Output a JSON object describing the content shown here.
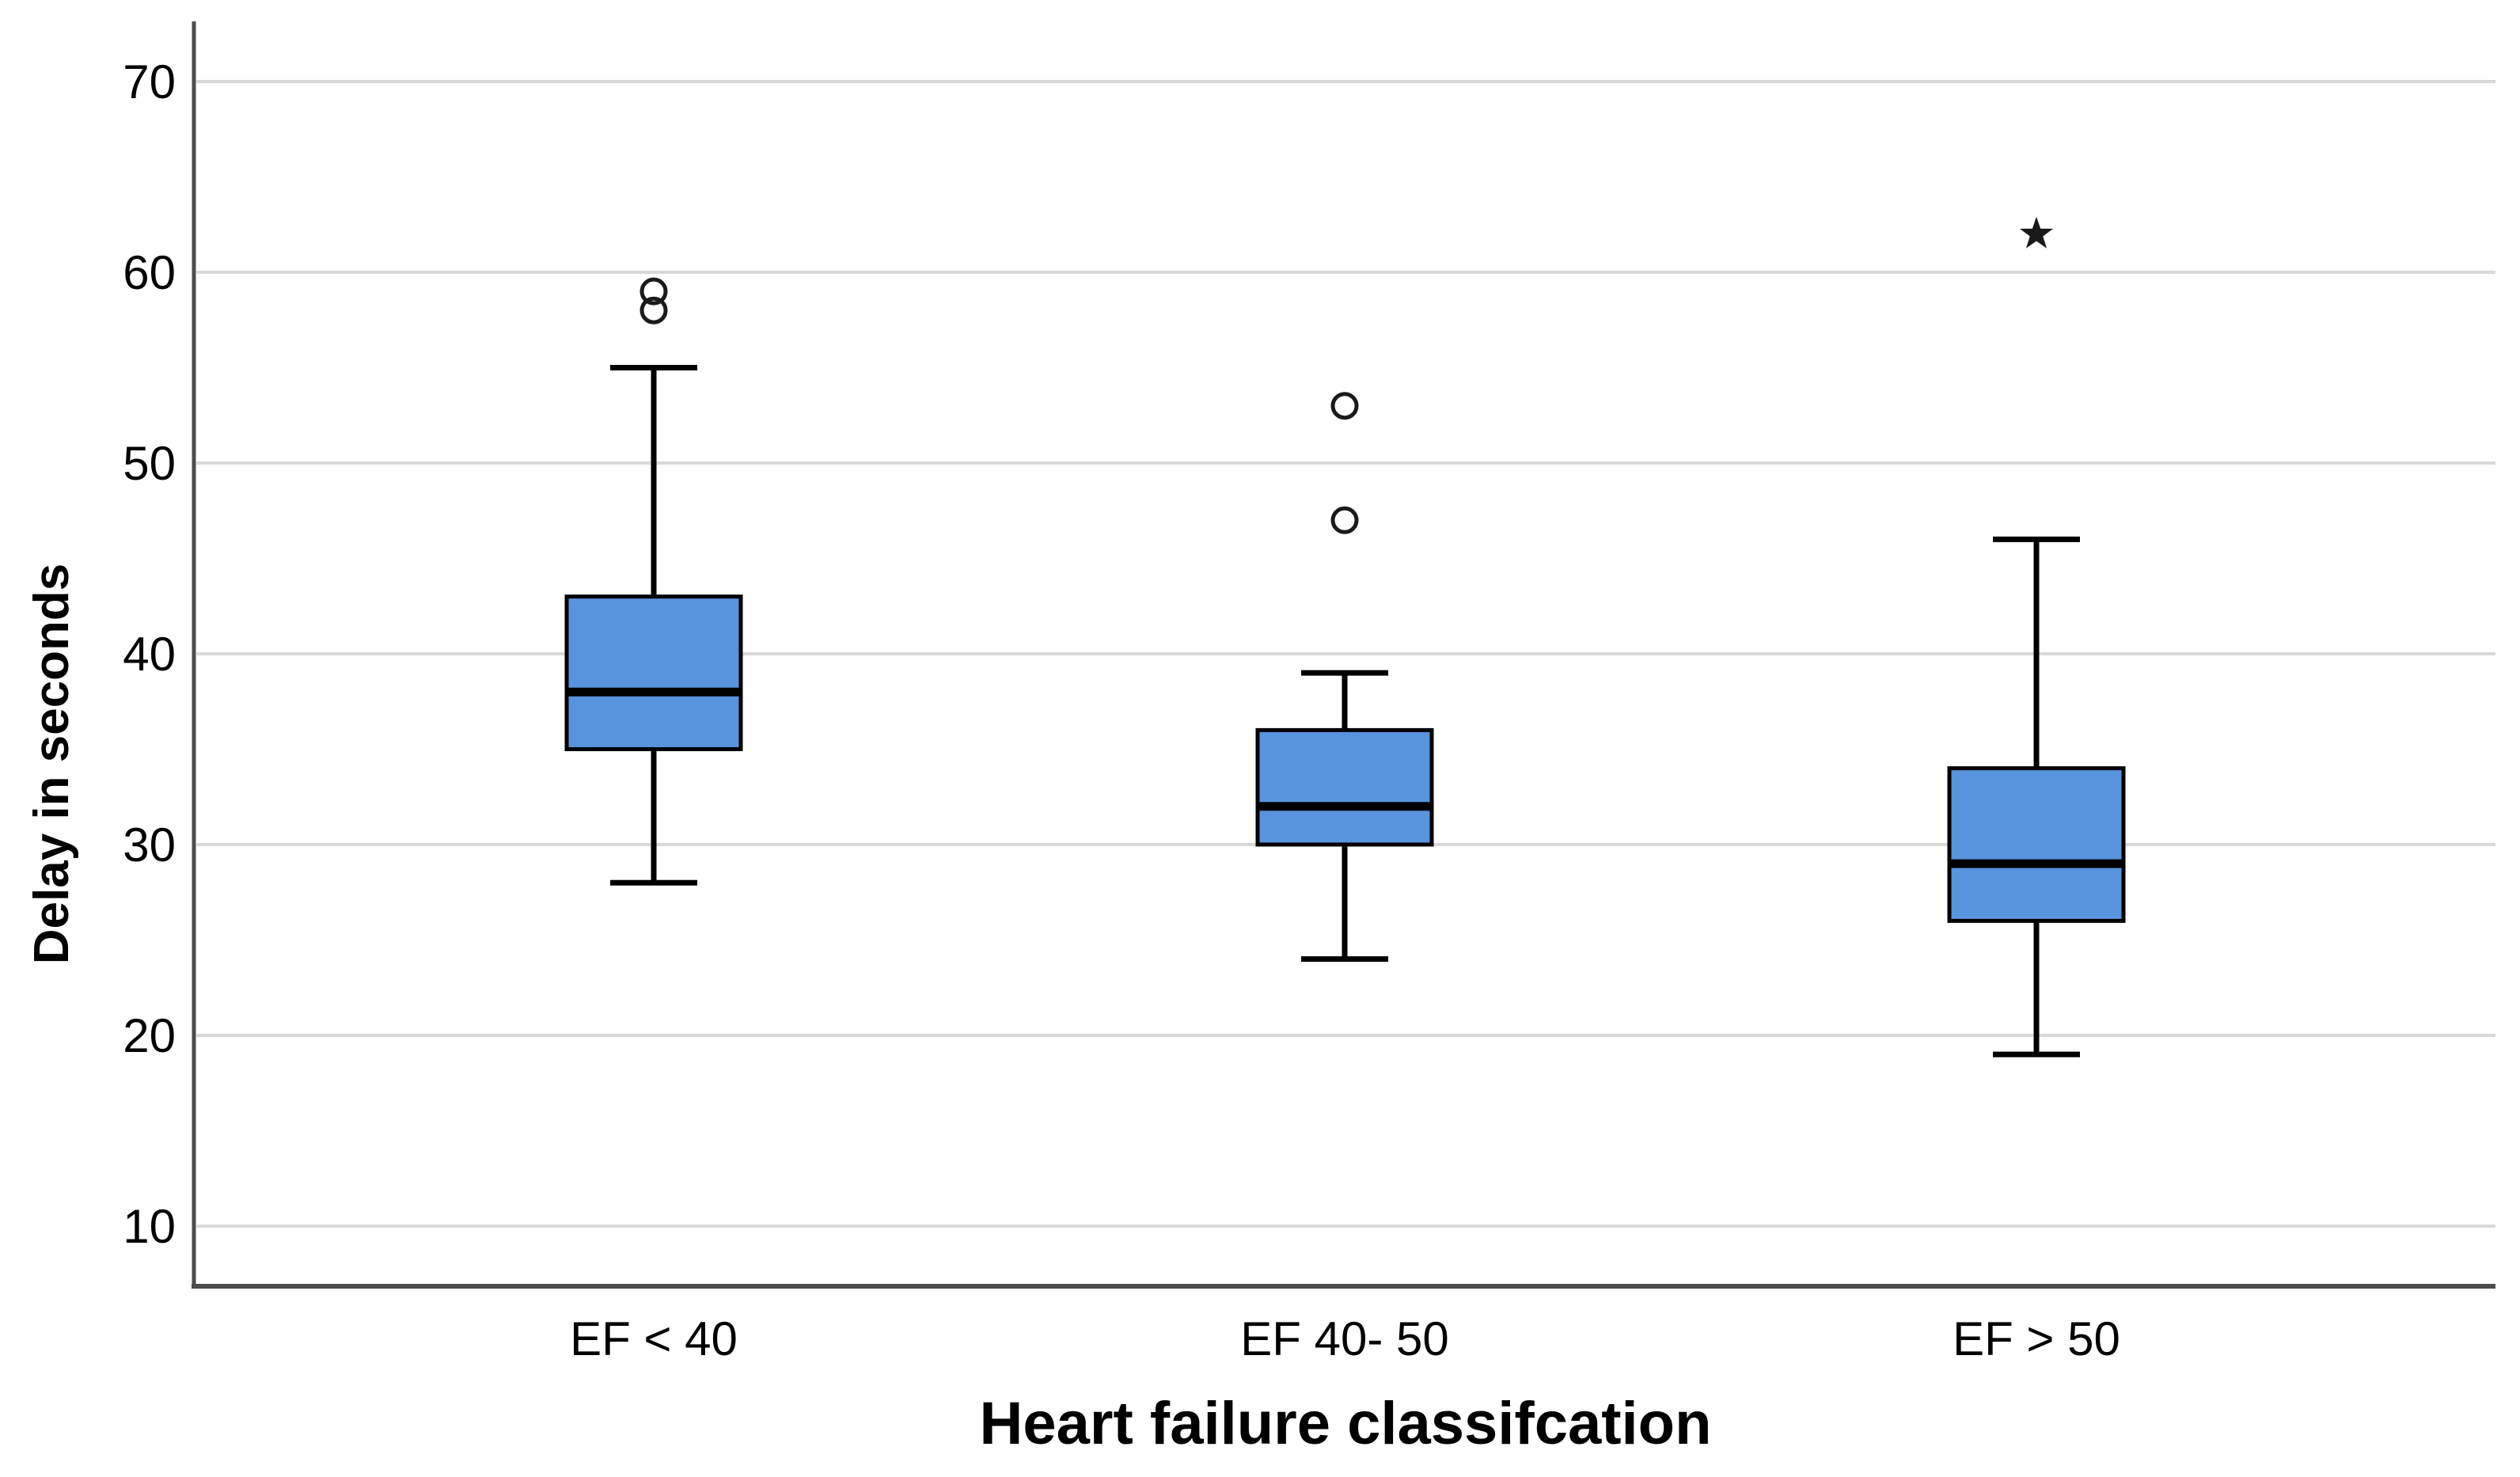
{
  "figure": {
    "background_color": "#ffffff"
  },
  "chart_data": {
    "type": "box",
    "title": "",
    "xlabel": "Heart failure classifcation",
    "ylabel": "Delay in seconds",
    "categories": [
      "EF < 40",
      "EF 40- 50",
      "EF > 50"
    ],
    "y_axis": {
      "ticks": [
        10,
        20,
        30,
        40,
        50,
        60,
        70
      ],
      "gridlines": true,
      "gridline_orientation": "horizontal"
    },
    "series": [
      {
        "category": "EF < 40",
        "whisker_low": 28,
        "q1": 35,
        "median": 38,
        "q3": 43,
        "whisker_high": 55,
        "mild_outliers": [
          58,
          59
        ],
        "extreme_outliers": []
      },
      {
        "category": "EF 40- 50",
        "whisker_low": 24,
        "q1": 30,
        "median": 32,
        "q3": 36,
        "whisker_high": 39,
        "mild_outliers": [
          47,
          53
        ],
        "extreme_outliers": []
      },
      {
        "category": "EF > 50",
        "whisker_low": 19,
        "q1": 26,
        "median": 29,
        "q3": 34,
        "whisker_high": 46,
        "mild_outliers": [],
        "extreme_outliers": [
          62
        ]
      }
    ],
    "outlier_markers": {
      "mild": "open-circle",
      "extreme": "star"
    },
    "legend": "none",
    "colors": {
      "box_fill": "#5894DE",
      "box_border": "#000000",
      "median_line": "#000000",
      "whisker": "#000000",
      "outlier": "#1a1a1a",
      "gridline": "#d8d8d8",
      "axis_line": "#4d4d4d",
      "text": "#000000",
      "background": "#ffffff"
    }
  }
}
